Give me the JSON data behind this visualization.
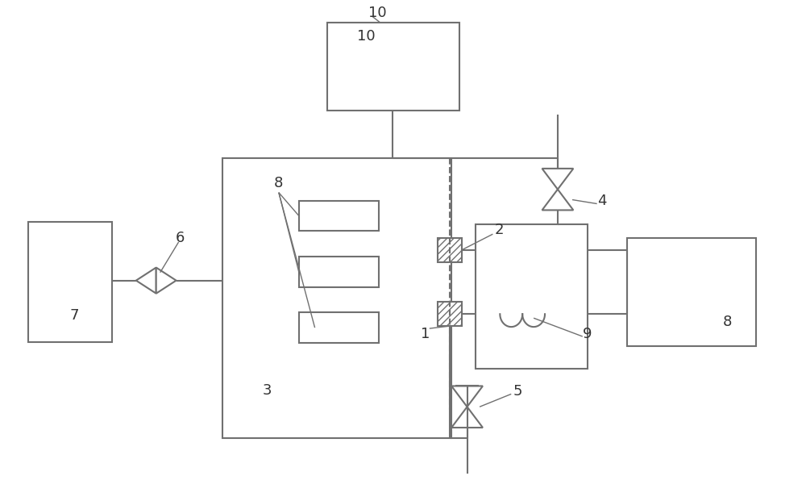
{
  "bg": "#ffffff",
  "lc": "#707070",
  "lw": 1.5,
  "lw_ann": 1.0,
  "fs": 13,
  "label_color": "#333333"
}
